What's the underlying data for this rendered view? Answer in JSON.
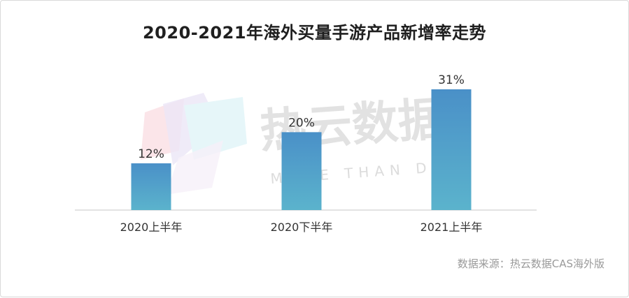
{
  "chart_data": {
    "type": "bar",
    "title": "2020-2021年海外买量手游产品新增率走势",
    "categories": [
      "2020上半年",
      "2020下半年",
      "2021上半年"
    ],
    "values": [
      12,
      20,
      31
    ],
    "value_labels": [
      "12%",
      "20%",
      "31%"
    ],
    "unit": "%",
    "ylim": [
      0,
      31
    ],
    "grid": false,
    "legend": "none",
    "bar_color_top": "#4a90c8",
    "bar_color_bottom": "#5bb3cc"
  },
  "watermark": {
    "brand": "热云数据",
    "tagline": "MORE THAN DATA"
  },
  "source": "数据来源：热云数据CAS海外版"
}
